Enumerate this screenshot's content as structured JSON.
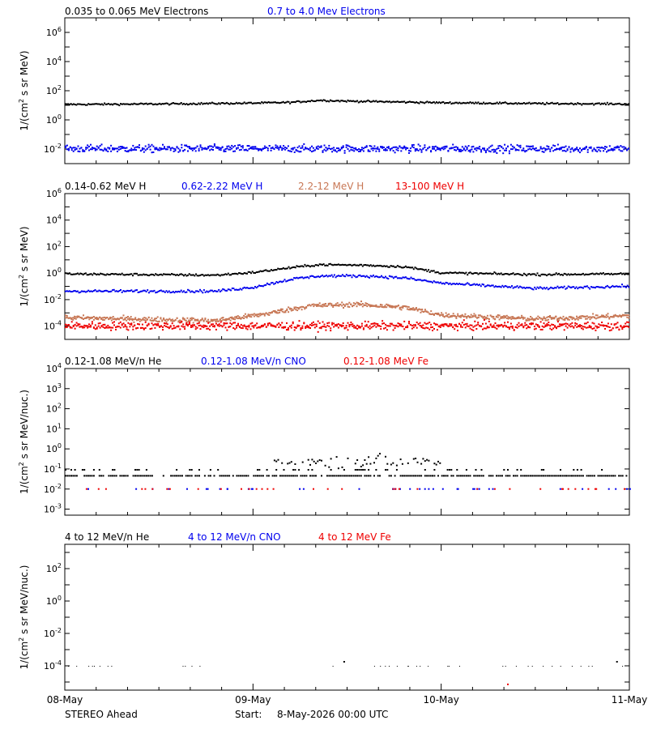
{
  "footer": {
    "spacecraft": "STEREO Ahead",
    "start_label": "Start:",
    "start_value": "8-May-2026 00:00 UTC"
  },
  "colors": {
    "black": "#000000",
    "blue": "#0000ee",
    "tan": "#c87856",
    "red": "#ee0000"
  },
  "chart_data": [
    {
      "type": "scatter",
      "ylabel": "1/(cm² s sr MeV)",
      "yscale": "log",
      "ylim_exp": [
        -3,
        7
      ],
      "y_ticks": [
        {
          "exp": -2,
          "label": "10⁻²"
        },
        {
          "exp": 0,
          "label": "10⁰"
        },
        {
          "exp": 2,
          "label": "10²"
        },
        {
          "exp": 4,
          "label": "10⁴"
        },
        {
          "exp": 6,
          "label": "10⁶"
        }
      ],
      "xlim_days": [
        0,
        3
      ],
      "series": [
        {
          "name": "0.035 to 0.065 MeV Electrons",
          "color": "#000000",
          "style": "dense",
          "profile": [
            [
              0,
              13
            ],
            [
              0.5,
              14
            ],
            [
              1.0,
              16
            ],
            [
              1.2,
              18
            ],
            [
              1.35,
              25
            ],
            [
              1.5,
              22
            ],
            [
              1.7,
              20
            ],
            [
              2.0,
              17
            ],
            [
              2.5,
              15
            ],
            [
              3.0,
              14
            ]
          ],
          "scatter_dex": 0.06
        },
        {
          "name": "0.7 to 4.0 Mev Electrons",
          "color": "#0000ee",
          "style": "sparse",
          "profile": [
            [
              0,
              0.012
            ],
            [
              3.0,
              0.012
            ]
          ],
          "scatter_dex": 0.25
        }
      ]
    },
    {
      "type": "scatter",
      "ylabel": "1/(cm² s sr MeV)",
      "yscale": "log",
      "ylim_exp": [
        -5,
        6
      ],
      "y_ticks": [
        {
          "exp": -4,
          "label": "10⁻⁴"
        },
        {
          "exp": -2,
          "label": "10⁻²"
        },
        {
          "exp": 0,
          "label": "10⁰"
        },
        {
          "exp": 2,
          "label": "10²"
        },
        {
          "exp": 4,
          "label": "10⁴"
        },
        {
          "exp": 6,
          "label": "10⁶"
        }
      ],
      "xlim_days": [
        0,
        3
      ],
      "series": [
        {
          "name": "0.14-0.62 MeV H",
          "color": "#000000",
          "style": "dense",
          "profile": [
            [
              0,
              1.0
            ],
            [
              0.8,
              0.8
            ],
            [
              1.0,
              1.3
            ],
            [
              1.2,
              3.0
            ],
            [
              1.35,
              5.0
            ],
            [
              1.6,
              4.5
            ],
            [
              1.8,
              3.5
            ],
            [
              2.0,
              1.2
            ],
            [
              2.5,
              0.9
            ],
            [
              3.0,
              1.0
            ]
          ],
          "scatter_dex": 0.08
        },
        {
          "name": "0.62-2.22 MeV H",
          "color": "#0000ee",
          "style": "dense",
          "profile": [
            [
              0,
              0.05
            ],
            [
              0.8,
              0.05
            ],
            [
              1.0,
              0.1
            ],
            [
              1.2,
              0.4
            ],
            [
              1.35,
              0.7
            ],
            [
              1.6,
              0.7
            ],
            [
              1.8,
              0.5
            ],
            [
              2.0,
              0.2
            ],
            [
              2.5,
              0.08
            ],
            [
              3.0,
              0.12
            ]
          ],
          "scatter_dex": 0.1
        },
        {
          "name": "2.2-12 MeV H",
          "color": "#c87856",
          "style": "medium",
          "profile": [
            [
              0,
              0.0005
            ],
            [
              0.8,
              0.0003
            ],
            [
              1.05,
              0.0009
            ],
            [
              1.3,
              0.004
            ],
            [
              1.55,
              0.005
            ],
            [
              1.8,
              0.003
            ],
            [
              2.0,
              0.0008
            ],
            [
              2.5,
              0.0004
            ],
            [
              3.0,
              0.0007
            ]
          ],
          "scatter_dex": 0.18
        },
        {
          "name": "13-100 MeV H",
          "color": "#ee0000",
          "style": "sparse",
          "profile": [
            [
              0,
              0.00012
            ],
            [
              3.0,
              0.00012
            ]
          ],
          "scatter_dex": 0.3
        }
      ]
    },
    {
      "type": "scatter",
      "ylabel": "1/(cm² s sr MeV/nuc.)",
      "yscale": "log",
      "ylim_exp": [
        -3.3,
        4
      ],
      "y_ticks": [
        {
          "exp": -3,
          "label": "10⁻³"
        },
        {
          "exp": -2,
          "label": "10⁻²"
        },
        {
          "exp": -1,
          "label": "10⁻¹"
        },
        {
          "exp": 0,
          "label": "10⁰"
        },
        {
          "exp": 1,
          "label": "10¹"
        },
        {
          "exp": 2,
          "label": "10²"
        },
        {
          "exp": 3,
          "label": "10³"
        },
        {
          "exp": 4,
          "label": "10⁴"
        }
      ],
      "xlim_days": [
        0,
        3
      ],
      "series": [
        {
          "name": "0.12-1.08 MeV/n He",
          "color": "#000000",
          "style": "quantized",
          "levels": [
            0.05,
            0.1,
            0.15
          ],
          "burst": [
            1.1,
            2.0,
            0.25
          ]
        },
        {
          "name": "0.12-1.08 MeV/n CNO",
          "color": "#0000ee",
          "style": "quantized-sparse",
          "levels": [
            0.011
          ]
        },
        {
          "name": "0.12-1.08 MeV Fe",
          "color": "#ee0000",
          "style": "quantized-sparse",
          "levels": [
            0.011
          ]
        }
      ]
    },
    {
      "type": "scatter",
      "ylabel": "1/(cm² s sr MeV/nuc.)",
      "yscale": "log",
      "ylim_exp": [
        -5.5,
        3.5
      ],
      "y_ticks": [
        {
          "exp": -4,
          "label": "10⁻⁴"
        },
        {
          "exp": -2,
          "label": "10⁻²"
        },
        {
          "exp": 0,
          "label": "10⁰"
        },
        {
          "exp": 2,
          "label": "10²"
        }
      ],
      "xlim_days": [
        0,
        3
      ],
      "series": [
        {
          "name": "4 to 12 MeV/n He",
          "color": "#000000",
          "style": "rare",
          "levels": [
            0.0001
          ]
        },
        {
          "name": "4 to 12 MeV/n CNO",
          "color": "#0000ee",
          "style": "none",
          "levels": []
        },
        {
          "name": "4 to 12 MeV Fe",
          "color": "#ee0000",
          "style": "rare-one",
          "levels": [
            8e-06
          ]
        }
      ]
    }
  ],
  "x_axis": {
    "ticks": [
      {
        "day": 0,
        "label": "08-May"
      },
      {
        "day": 1,
        "label": "09-May"
      },
      {
        "day": 2,
        "label": "10-May"
      },
      {
        "day": 3,
        "label": "11-May"
      }
    ]
  }
}
